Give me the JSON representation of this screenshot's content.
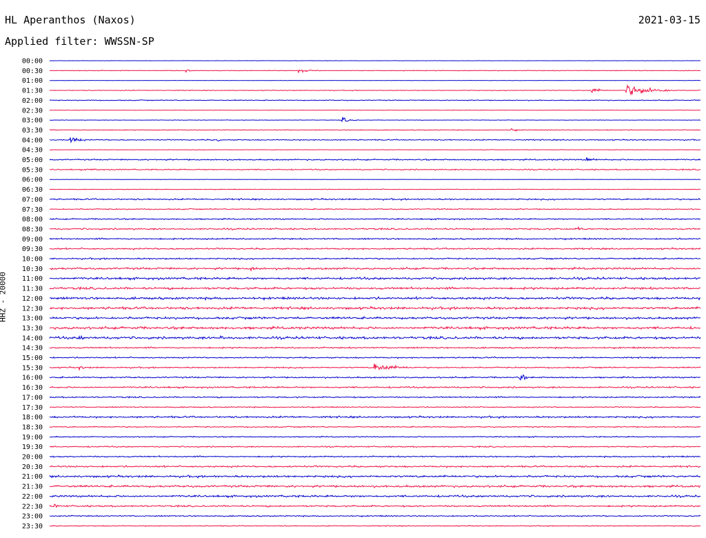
{
  "header": {
    "station": "HL Aperanthos (Naxos)",
    "date": "2021-03-15",
    "filter": "Applied filter: WWSSN-SP"
  },
  "channel_label": "HHZ - 20000",
  "colors": {
    "even_rows": "#0000cc",
    "odd_rows": "#ee1144",
    "axis_text": "#000000"
  },
  "chart_data": {
    "type": "line",
    "description_kind": "helicorder",
    "row_labels": [
      "00:00",
      "00:30",
      "01:00",
      "01:30",
      "02:00",
      "02:30",
      "03:00",
      "03:30",
      "04:00",
      "04:30",
      "05:00",
      "05:30",
      "06:00",
      "06:30",
      "07:00",
      "07:30",
      "08:00",
      "08:30",
      "09:00",
      "09:30",
      "10:00",
      "10:30",
      "11:00",
      "11:30",
      "12:00",
      "12:30",
      "13:00",
      "13:30",
      "14:00",
      "14:30",
      "15:00",
      "15:30",
      "16:00",
      "16:30",
      "17:00",
      "17:30",
      "18:00",
      "18:30",
      "19:00",
      "19:30",
      "20:00",
      "20:30",
      "21:00",
      "21:30",
      "22:00",
      "22:30",
      "23:00",
      "23:30"
    ],
    "noise_level": [
      0.3,
      0.6,
      0.3,
      0.6,
      0.8,
      0.4,
      0.4,
      0.7,
      1.0,
      0.4,
      1.2,
      1.0,
      0.3,
      0.6,
      1.3,
      1.0,
      1.2,
      1.4,
      1.3,
      1.4,
      1.3,
      1.8,
      2.0,
      2.0,
      2.1,
      2.2,
      2.0,
      2.3,
      2.2,
      1.3,
      1.2,
      1.2,
      1.3,
      1.4,
      1.2,
      1.0,
      1.6,
      1.0,
      1.0,
      1.1,
      1.2,
      1.5,
      1.8,
      1.9,
      1.8,
      1.5,
      1.1,
      0.8
    ],
    "events": [
      {
        "row": 1,
        "minute": 6.3,
        "amplitude": 3,
        "duration_min": 0.7
      },
      {
        "row": 1,
        "minute": 11.5,
        "amplitude": 4,
        "duration_min": 1.0
      },
      {
        "row": 3,
        "minute": 25.0,
        "amplitude": 6,
        "duration_min": 0.8
      },
      {
        "row": 3,
        "minute": 26.6,
        "amplitude": 13,
        "duration_min": 2.4
      },
      {
        "row": 6,
        "minute": 13.5,
        "amplitude": 6,
        "duration_min": 0.8
      },
      {
        "row": 7,
        "minute": 21.3,
        "amplitude": 4,
        "duration_min": 0.6
      },
      {
        "row": 8,
        "minute": 1.0,
        "amplitude": 7,
        "duration_min": 1.0
      },
      {
        "row": 8,
        "minute": 7.7,
        "amplitude": 5,
        "duration_min": 0.5
      },
      {
        "row": 10,
        "minute": 24.8,
        "amplitude": 7,
        "duration_min": 0.6
      },
      {
        "row": 11,
        "minute": 1.9,
        "amplitude": 6,
        "duration_min": 0.5
      },
      {
        "row": 17,
        "minute": 24.4,
        "amplitude": 4,
        "duration_min": 0.6
      },
      {
        "row": 21,
        "minute": 9.3,
        "amplitude": 6,
        "duration_min": 0.6
      },
      {
        "row": 28,
        "minute": 1.4,
        "amplitude": 5,
        "duration_min": 0.6
      },
      {
        "row": 28,
        "minute": 7.9,
        "amplitude": 5,
        "duration_min": 0.9
      },
      {
        "row": 31,
        "minute": 1.4,
        "amplitude": 5,
        "duration_min": 0.6
      },
      {
        "row": 31,
        "minute": 15.0,
        "amplitude": 10,
        "duration_min": 1.9
      },
      {
        "row": 32,
        "minute": 21.7,
        "amplitude": 8,
        "duration_min": 0.6
      },
      {
        "row": 45,
        "minute": 0.2,
        "amplitude": 6,
        "duration_min": 0.6
      }
    ]
  }
}
